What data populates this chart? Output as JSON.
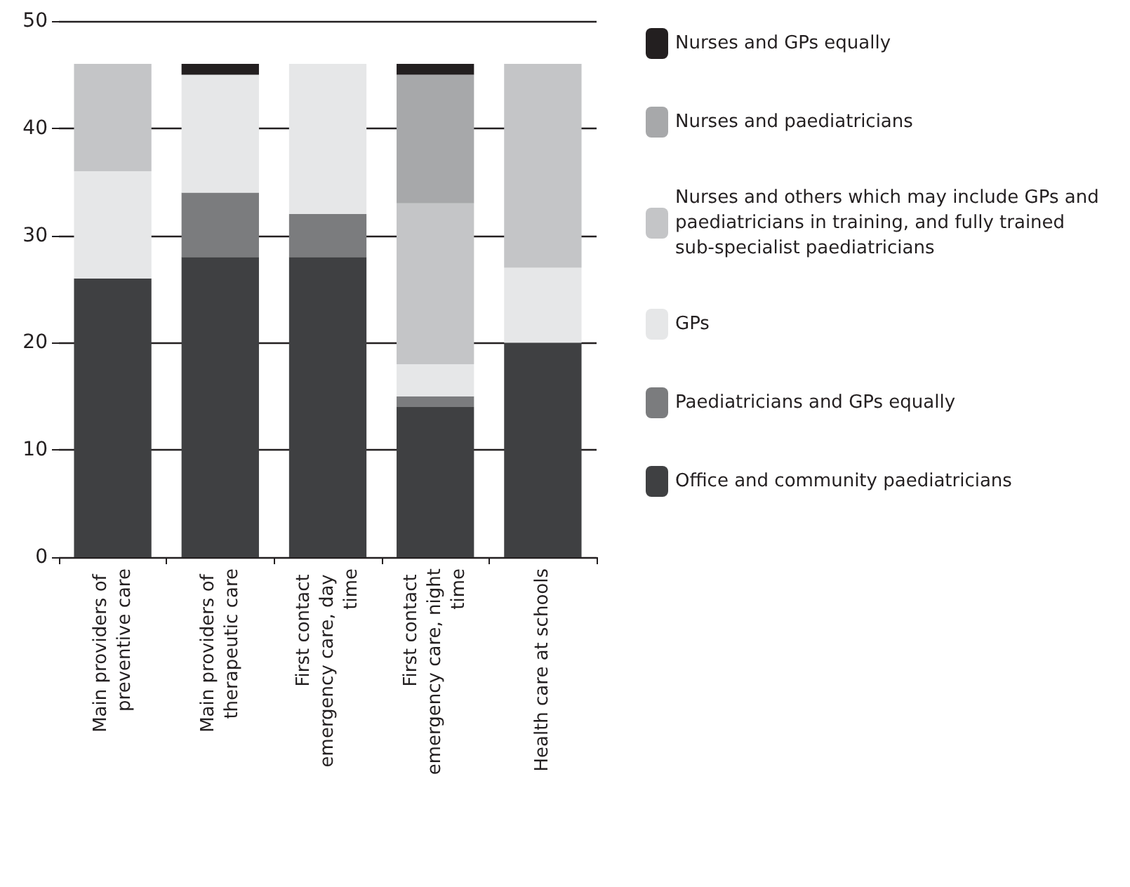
{
  "chart_data": {
    "type": "bar",
    "stacked": true,
    "categories": [
      "Main providers of preventive care",
      "Main providers of therapeutic care",
      "First contact emergency care, day time",
      "First contact emergency care, night time",
      "Health care at schools"
    ],
    "series": [
      {
        "name": "Office and community paediatricians",
        "color": "#3f4042",
        "values": [
          26,
          28,
          28,
          14,
          20
        ]
      },
      {
        "name": "Paediatricians and GPs equally",
        "color": "#7b7c7e",
        "values": [
          0,
          6,
          4,
          1,
          0
        ]
      },
      {
        "name": "GPs",
        "color": "#e6e7e8",
        "values": [
          10,
          11,
          14,
          3,
          7
        ]
      },
      {
        "name": "Nurses and others which may include GPs and paediatricians in training, and fully trained sub-specialist paediatricians",
        "color": "#c4c5c7",
        "values": [
          10,
          0,
          0,
          15,
          19
        ]
      },
      {
        "name": "Nurses and paediatricians",
        "color": "#a7a8aa",
        "values": [
          0,
          0,
          0,
          12,
          0
        ]
      },
      {
        "name": "Nurses and GPs equally",
        "color": "#231f20",
        "values": [
          0,
          1,
          0,
          1,
          0
        ]
      }
    ],
    "ylim": [
      0,
      50
    ],
    "yticks": [
      0,
      10,
      20,
      30,
      40,
      50
    ],
    "grid": "y",
    "legend": "right"
  }
}
